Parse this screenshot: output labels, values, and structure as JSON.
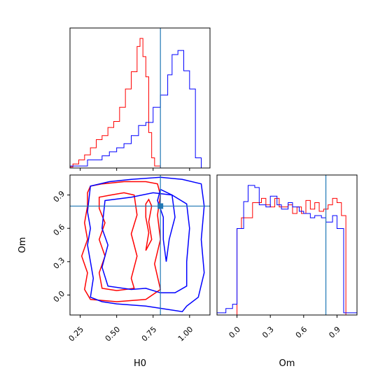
{
  "chart_data": [
    {
      "type": "histogram",
      "panel": "H0 marginal",
      "xlim": [
        0.18,
        1.14
      ],
      "truth_x": 0.8,
      "series": [
        {
          "color": "#ff0000",
          "x_edges": [
            0.18,
            0.2,
            0.24,
            0.28,
            0.32,
            0.36,
            0.4,
            0.44,
            0.48,
            0.52,
            0.56,
            0.6,
            0.64,
            0.66,
            0.68,
            0.7,
            0.72,
            0.74,
            0.76,
            0.8,
            0.84,
            0.88
          ],
          "counts": [
            1,
            4,
            8,
            13,
            20,
            28,
            32,
            40,
            46,
            60,
            78,
            95,
            120,
            128,
            110,
            90,
            35,
            10,
            2,
            0,
            0
          ]
        },
        {
          "color": "#0000ff",
          "x_edges": [
            0.18,
            0.3,
            0.4,
            0.45,
            0.5,
            0.55,
            0.6,
            0.65,
            0.7,
            0.75,
            0.8,
            0.85,
            0.88,
            0.92,
            0.96,
            1.0,
            1.04,
            1.08,
            1.14
          ],
          "counts": [
            2,
            8,
            12,
            16,
            20,
            24,
            32,
            42,
            45,
            60,
            72,
            92,
            112,
            116,
            96,
            78,
            10,
            0
          ]
        }
      ]
    },
    {
      "type": "contour",
      "panel": "H0 vs Om",
      "xlabel": "H0",
      "ylabel": "Om",
      "xlim": [
        0.18,
        1.14
      ],
      "ylim": [
        -0.18,
        1.08
      ],
      "xticks": [
        "0.25",
        "0.50",
        "0.75",
        "1.00"
      ],
      "yticks": [
        "0.0",
        "0.3",
        "0.6",
        "0.9"
      ],
      "xtick_values": [
        0.25,
        0.5,
        0.75,
        1.0
      ],
      "ytick_values": [
        0.0,
        0.3,
        0.6,
        0.9
      ],
      "truth": [
        0.8,
        0.8
      ],
      "series": [
        {
          "color": "#ff0000",
          "contours": [
            [
              [
                0.32,
                0.98
              ],
              [
                0.4,
                1.0
              ],
              [
                0.55,
                1.02
              ],
              [
                0.7,
                1.02
              ],
              [
                0.78,
                1.0
              ],
              [
                0.8,
                0.9
              ],
              [
                0.78,
                0.72
              ],
              [
                0.8,
                0.5
              ],
              [
                0.76,
                0.28
              ],
              [
                0.8,
                0.05
              ],
              [
                0.7,
                -0.04
              ],
              [
                0.5,
                -0.06
              ],
              [
                0.32,
                -0.04
              ],
              [
                0.28,
                0.05
              ],
              [
                0.3,
                0.2
              ],
              [
                0.26,
                0.35
              ],
              [
                0.3,
                0.5
              ],
              [
                0.28,
                0.65
              ],
              [
                0.3,
                0.8
              ],
              [
                0.3,
                0.92
              ],
              [
                0.32,
                0.98
              ]
            ],
            [
              [
                0.38,
                0.88
              ],
              [
                0.46,
                0.9
              ],
              [
                0.55,
                0.92
              ],
              [
                0.62,
                0.9
              ],
              [
                0.64,
                0.72
              ],
              [
                0.6,
                0.55
              ],
              [
                0.64,
                0.35
              ],
              [
                0.6,
                0.15
              ],
              [
                0.62,
                0.06
              ],
              [
                0.5,
                0.04
              ],
              [
                0.4,
                0.06
              ],
              [
                0.38,
                0.2
              ],
              [
                0.42,
                0.35
              ],
              [
                0.38,
                0.5
              ],
              [
                0.42,
                0.65
              ],
              [
                0.38,
                0.78
              ],
              [
                0.38,
                0.88
              ]
            ],
            [
              [
                0.7,
                0.82
              ],
              [
                0.72,
                0.86
              ],
              [
                0.74,
                0.8
              ],
              [
                0.72,
                0.66
              ],
              [
                0.74,
                0.5
              ],
              [
                0.7,
                0.4
              ],
              [
                0.72,
                0.56
              ],
              [
                0.7,
                0.7
              ],
              [
                0.7,
                0.82
              ]
            ]
          ]
        },
        {
          "color": "#0000ff",
          "contours": [
            [
              [
                0.32,
                0.98
              ],
              [
                0.45,
                1.02
              ],
              [
                0.6,
                1.04
              ],
              [
                0.8,
                1.06
              ],
              [
                0.95,
                1.04
              ],
              [
                1.08,
                1.0
              ],
              [
                1.1,
                0.8
              ],
              [
                1.08,
                0.5
              ],
              [
                1.1,
                0.2
              ],
              [
                1.06,
                -0.02
              ],
              [
                0.98,
                -0.1
              ],
              [
                0.95,
                -0.15
              ],
              [
                0.7,
                -0.1
              ],
              [
                0.5,
                -0.08
              ],
              [
                0.4,
                -0.06
              ],
              [
                0.32,
                -0.02
              ],
              [
                0.34,
                0.15
              ],
              [
                0.32,
                0.3
              ],
              [
                0.3,
                0.45
              ],
              [
                0.32,
                0.6
              ],
              [
                0.3,
                0.75
              ],
              [
                0.32,
                0.98
              ]
            ],
            [
              [
                0.42,
                0.85
              ],
              [
                0.6,
                0.88
              ],
              [
                0.75,
                0.92
              ],
              [
                0.88,
                0.9
              ],
              [
                0.98,
                0.82
              ],
              [
                1.0,
                0.6
              ],
              [
                0.98,
                0.3
              ],
              [
                0.98,
                0.08
              ],
              [
                0.9,
                0.02
              ],
              [
                0.8,
                0.02
              ],
              [
                0.7,
                0.06
              ],
              [
                0.6,
                0.05
              ],
              [
                0.44,
                0.08
              ],
              [
                0.4,
                0.25
              ],
              [
                0.44,
                0.45
              ],
              [
                0.4,
                0.6
              ],
              [
                0.42,
                0.85
              ]
            ],
            [
              [
                0.8,
                0.95
              ],
              [
                0.88,
                0.9
              ],
              [
                0.9,
                0.7
              ],
              [
                0.86,
                0.5
              ],
              [
                0.84,
                0.3
              ],
              [
                0.82,
                0.5
              ],
              [
                0.82,
                0.7
              ],
              [
                0.78,
                0.85
              ],
              [
                0.8,
                0.95
              ]
            ]
          ]
        }
      ]
    },
    {
      "type": "histogram",
      "panel": "Om marginal",
      "xlabel": "Om",
      "xlim": [
        -0.18,
        1.08
      ],
      "xticks": [
        "0.0",
        "0.3",
        "0.6",
        "0.9"
      ],
      "xtick_values": [
        0.0,
        0.3,
        0.6,
        0.9
      ],
      "truth_x": 0.8,
      "series": [
        {
          "color": "#ff0000",
          "x_edges": [
            -0.18,
            0.0,
            0.04,
            0.1,
            0.14,
            0.18,
            0.22,
            0.26,
            0.3,
            0.34,
            0.38,
            0.42,
            0.46,
            0.5,
            0.54,
            0.58,
            0.62,
            0.66,
            0.7,
            0.74,
            0.78,
            0.82,
            0.86,
            0.9,
            0.94,
            0.98,
            1.0,
            1.08
          ],
          "counts": [
            0,
            80,
            90,
            90,
            104,
            104,
            108,
            102,
            100,
            108,
            100,
            100,
            102,
            94,
            100,
            94,
            106,
            98,
            104,
            96,
            98,
            102,
            108,
            104,
            92,
            0,
            0
          ]
        },
        {
          "color": "#0000ff",
          "x_edges": [
            -0.18,
            -0.1,
            -0.04,
            0.0,
            0.06,
            0.1,
            0.16,
            0.2,
            0.26,
            0.3,
            0.36,
            0.4,
            0.46,
            0.5,
            0.56,
            0.6,
            0.66,
            0.7,
            0.76,
            0.8,
            0.86,
            0.9,
            0.96,
            1.0,
            1.08
          ],
          "counts": [
            2,
            6,
            10,
            80,
            105,
            120,
            118,
            102,
            100,
            110,
            102,
            98,
            104,
            100,
            96,
            94,
            90,
            92,
            90,
            86,
            92,
            80,
            2,
            2
          ]
        }
      ]
    }
  ]
}
